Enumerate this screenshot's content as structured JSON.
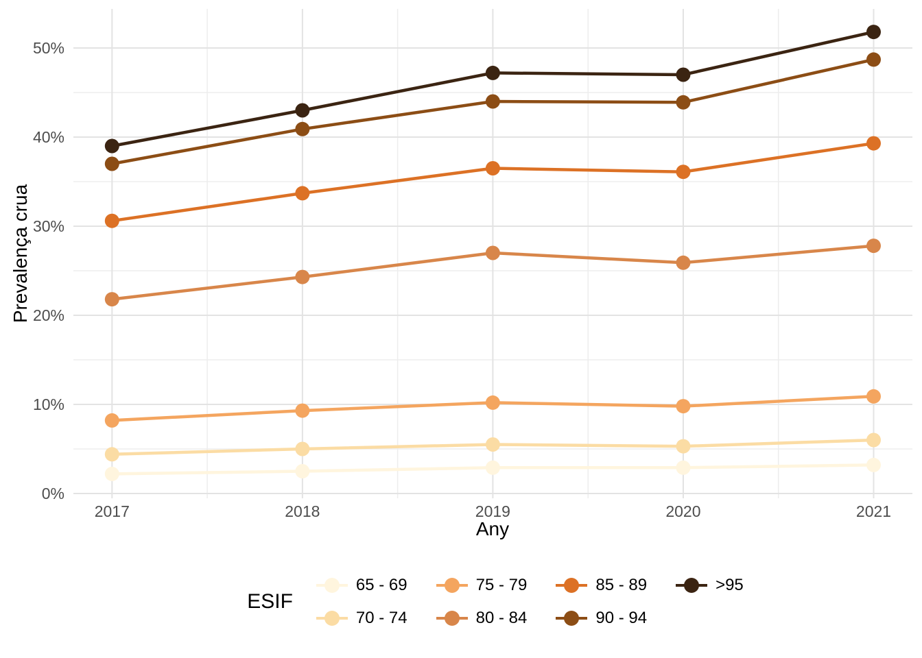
{
  "chart_data": {
    "type": "line",
    "title": "",
    "xlabel": "Any",
    "ylabel": "Prevalença crua",
    "x": [
      2017,
      2018,
      2019,
      2020,
      2021
    ],
    "x_tick_labels": [
      "2017",
      "2018",
      "2019",
      "2020",
      "2021"
    ],
    "y_tick_labels": [
      "0%",
      "10%",
      "20%",
      "30%",
      "40%",
      "50%"
    ],
    "y_ticks_major": [
      0,
      10,
      20,
      30,
      40,
      50
    ],
    "y_ticks_minor": [
      5,
      15,
      25,
      35,
      45
    ],
    "ylim": [
      -0.5,
      54.8
    ],
    "grid": true,
    "legend_title": "ESIF",
    "legend_position": "bottom",
    "series": [
      {
        "name": "65 - 69",
        "color": "#FFF5DE",
        "values": [
          2.2,
          2.5,
          2.9,
          2.9,
          3.2
        ]
      },
      {
        "name": "70 - 74",
        "color": "#FBDCA4",
        "values": [
          4.4,
          5.0,
          5.5,
          5.3,
          6.0
        ]
      },
      {
        "name": "75 - 79",
        "color": "#F4A55F",
        "values": [
          8.2,
          9.3,
          10.2,
          9.8,
          10.9
        ]
      },
      {
        "name": "80 - 84",
        "color": "#D8864A",
        "values": [
          21.8,
          24.3,
          27.0,
          25.9,
          27.8
        ]
      },
      {
        "name": "85 - 89",
        "color": "#DC7125",
        "values": [
          30.6,
          33.7,
          36.5,
          36.1,
          39.3
        ]
      },
      {
        "name": "90 - 94",
        "color": "#8C4D15",
        "values": [
          37.0,
          40.9,
          44.0,
          43.9,
          48.7
        ]
      },
      {
        "name": ">95",
        "color": "#3B2412",
        "values": [
          39.0,
          43.0,
          47.2,
          47.0,
          51.8
        ]
      }
    ],
    "style": {
      "tick_label_color": "#4D4D4D",
      "grid_major_color": "#E3E3E3",
      "grid_minor_color": "#EDEDED",
      "background": "#FFFFFF"
    }
  }
}
